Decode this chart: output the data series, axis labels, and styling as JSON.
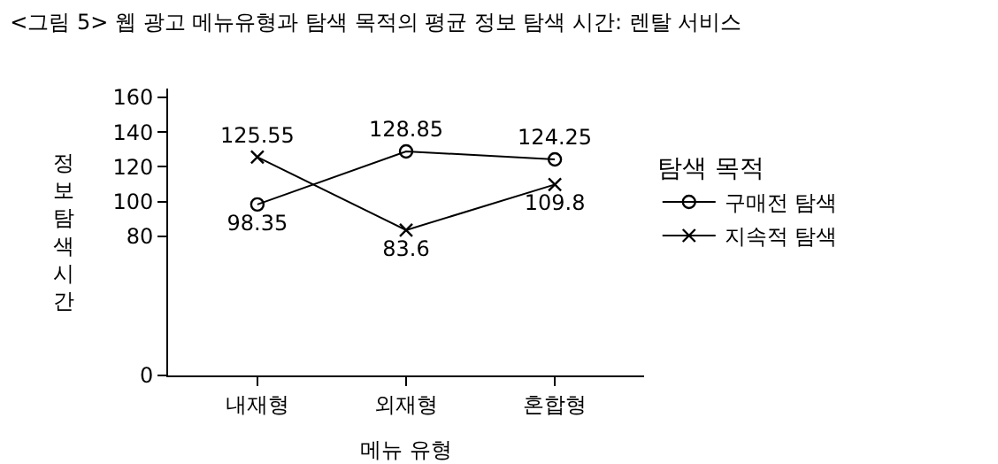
{
  "chart_data": {
    "type": "line",
    "title": "<그림 5> 웹 광고 메뉴유형과 탐색 목적의 평균 정보 탐색 시간: 렌탈 서비스",
    "xlabel": "메뉴 유형",
    "ylabel": "정보탐색시간",
    "legend_title": "탐색 목적",
    "categories": [
      "내재형",
      "외재형",
      "혼합형"
    ],
    "series": [
      {
        "name": "구매전 탐색",
        "color": "#000000",
        "marker": "circle",
        "values": [
          98.35,
          128.85,
          124.25
        ]
      },
      {
        "name": "지속적 탐색",
        "color": "#000000",
        "marker": "cross",
        "values": [
          125.55,
          83.6,
          109.8
        ]
      }
    ],
    "ylim": [
      0,
      165
    ],
    "yticks": [
      0,
      80,
      100,
      120,
      140,
      160
    ],
    "data_labels": true,
    "grid": false,
    "legend": "right",
    "line_style": "solid"
  }
}
